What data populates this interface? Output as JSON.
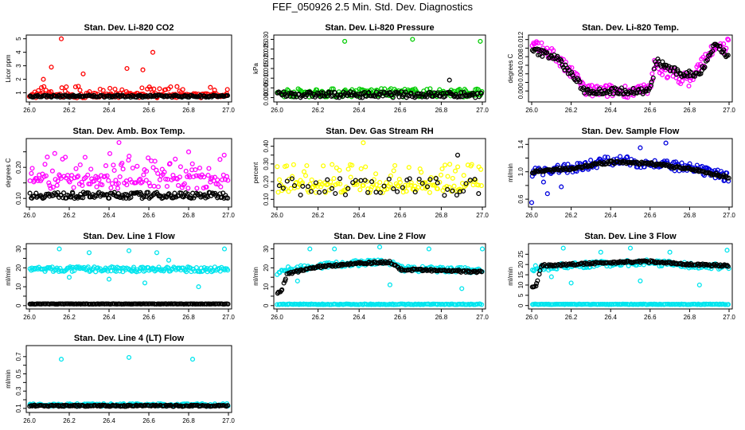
{
  "page": {
    "title": "FEF_050926  2.5 Min. Std. Dev. Diagnostics"
  },
  "chart_data": [
    {
      "type": "scatter",
      "title": "Stan. Dev. Li-820 CO2",
      "xlabel": "",
      "ylabel": "Licor ppm",
      "xlim": [
        26.0,
        27.0
      ],
      "ylim": [
        0.5,
        5.1
      ],
      "xticks": [
        "26.0",
        "26.2",
        "26.4",
        "26.6",
        "26.8",
        "27.0"
      ],
      "yticks": [
        1,
        2,
        3,
        4,
        5
      ],
      "ytick_labels": [
        "1",
        "2",
        "3",
        "4",
        "5"
      ],
      "colors": [
        "#ff0000",
        "#000000"
      ],
      "series": [
        {
          "color": "#ff0000",
          "style": "wide",
          "base": 0.8,
          "spread": 0.35,
          "outliers": [
            [
              26.16,
              5.0
            ],
            [
              26.62,
              4.0
            ],
            [
              26.11,
              2.9
            ],
            [
              26.49,
              2.8
            ],
            [
              26.57,
              2.7
            ],
            [
              26.27,
              2.4
            ],
            [
              26.07,
              2.0
            ]
          ]
        },
        {
          "color": "#000000",
          "style": "flat",
          "base": 0.75,
          "spread": 0.08,
          "outliers": []
        }
      ]
    },
    {
      "type": "scatter",
      "title": "Stan. Dev. Li-820 Pressure",
      "xlabel": "",
      "ylabel": "kPa",
      "xlim": [
        26.0,
        27.0
      ],
      "ylim": [
        -0.001,
        0.031
      ],
      "xticks": [
        "26.0",
        "26.2",
        "26.4",
        "26.6",
        "26.8",
        "27.0"
      ],
      "yticks": [
        0.0,
        0.005,
        0.01,
        0.015,
        0.02,
        0.025,
        0.03
      ],
      "ytick_labels": [
        "0.000",
        "0.005",
        "0.010",
        "0.015",
        "0.020",
        "0.025",
        "0.030"
      ],
      "colors": [
        "#00cc00",
        "#000000"
      ],
      "series": [
        {
          "color": "#00cc00",
          "style": "band",
          "base": 0.0025,
          "spread": 0.0022,
          "outliers": [
            [
              26.33,
              0.029
            ],
            [
              26.66,
              0.03
            ],
            [
              26.99,
              0.029
            ]
          ]
        },
        {
          "color": "#000000",
          "style": "band",
          "base": 0.0015,
          "spread": 0.0015,
          "outliers": [
            [
              26.84,
              0.009
            ]
          ]
        }
      ]
    },
    {
      "type": "scatter",
      "title": "Stan. Dev. Li-820 Temp.",
      "xlabel": "",
      "ylabel": "degrees C",
      "xlim": [
        26.0,
        27.0
      ],
      "ylim": [
        -0.002,
        0.0125
      ],
      "xticks": [
        "26.0",
        "26.2",
        "26.4",
        "26.6",
        "26.8",
        "27.0"
      ],
      "yticks": [
        0.0,
        0.002,
        0.004,
        0.006,
        0.008,
        0.01,
        0.012
      ],
      "ytick_labels": [
        "0.000",
        "",
        "0.004",
        "",
        "0.008",
        "",
        "0.012"
      ],
      "colors": [
        "#ff00ff",
        "#000000"
      ],
      "series": [
        {
          "color": "#ff00ff",
          "style": "curve",
          "curve": [
            [
              26.0,
              0.0105
            ],
            [
              26.1,
              0.009
            ],
            [
              26.18,
              0.005
            ],
            [
              26.25,
              0.002
            ],
            [
              26.27,
              0.0
            ],
            [
              26.6,
              0.0
            ],
            [
              26.62,
              0.006
            ],
            [
              26.7,
              0.004
            ],
            [
              26.8,
              0.0025
            ],
            [
              26.9,
              0.009
            ],
            [
              27.0,
              0.011
            ]
          ],
          "spread": 0.0015,
          "outliers": []
        },
        {
          "color": "#000000",
          "style": "curve",
          "curve": [
            [
              26.0,
              0.0095
            ],
            [
              26.12,
              0.008
            ],
            [
              26.2,
              0.004
            ],
            [
              26.27,
              0.0
            ],
            [
              26.6,
              0.0
            ],
            [
              26.63,
              0.007
            ],
            [
              26.75,
              0.004
            ],
            [
              26.85,
              0.004
            ],
            [
              26.93,
              0.011
            ],
            [
              27.0,
              0.008
            ]
          ],
          "spread": 0.0008,
          "outliers": []
        }
      ]
    },
    {
      "type": "scatter",
      "title": "Stan. Dev. Amb. Box Temp.",
      "xlabel": "",
      "ylabel": "degrees C",
      "xlim": [
        26.0,
        27.0
      ],
      "ylim": [
        0.08,
        0.285
      ],
      "xticks": [
        "26.0",
        "26.2",
        "26.4",
        "26.6",
        "26.8",
        "27.0"
      ],
      "yticks": [
        0.1,
        0.15,
        0.2,
        0.25
      ],
      "ytick_labels": [
        "0.10",
        "",
        "0.20",
        ""
      ],
      "colors": [
        "#ff00ff",
        "#000000"
      ],
      "series": [
        {
          "color": "#ff00ff",
          "style": "wide",
          "base": 0.155,
          "spread": 0.045,
          "outliers": [
            [
              26.45,
              0.28
            ],
            [
              26.8,
              0.25
            ]
          ]
        },
        {
          "color": "#000000",
          "style": "band",
          "base": 0.11,
          "spread": 0.01,
          "outliers": []
        }
      ]
    },
    {
      "type": "scatter",
      "title": "Stan. Dev. Gas Stream RH",
      "xlabel": "",
      "ylabel": "percent",
      "xlim": [
        26.0,
        27.0
      ],
      "ylim": [
        0.07,
        0.43
      ],
      "xticks": [
        "26.0",
        "26.2",
        "26.4",
        "26.6",
        "26.8",
        "27.0"
      ],
      "yticks": [
        0.1,
        0.15,
        0.2,
        0.25,
        0.3,
        0.35,
        0.4
      ],
      "ytick_labels": [
        "0.10",
        "",
        "0.20",
        "",
        "0.30",
        "",
        "0.40"
      ],
      "colors": [
        "#ffff00",
        "#000000"
      ],
      "series": [
        {
          "color": "#ffff00",
          "style": "wide",
          "base": 0.17,
          "spread": 0.065,
          "outliers": [
            [
              26.42,
              0.42
            ]
          ]
        },
        {
          "color": "#000000",
          "style": "sparse",
          "base": 0.17,
          "spread": 0.05,
          "outliers": [
            [
              26.88,
              0.35
            ]
          ]
        }
      ]
    },
    {
      "type": "scatter",
      "title": "Stan. Dev. Sample Flow",
      "xlabel": "",
      "ylabel": "ml/min",
      "xlim": [
        26.0,
        27.0
      ],
      "ylim": [
        0.52,
        1.45
      ],
      "xticks": [
        "26.0",
        "26.2",
        "26.4",
        "26.6",
        "26.8",
        "27.0"
      ],
      "yticks": [
        0.6,
        0.8,
        1.0,
        1.2,
        1.4
      ],
      "ytick_labels": [
        "0.6",
        "",
        "1.0",
        "",
        "1.4"
      ],
      "colors": [
        "#0000dd",
        "#000000"
      ],
      "series": [
        {
          "color": "#0000dd",
          "style": "curve",
          "curve": [
            [
              26.0,
              1.0
            ],
            [
              26.2,
              1.05
            ],
            [
              26.4,
              1.17
            ],
            [
              26.6,
              1.12
            ],
            [
              26.8,
              1.05
            ],
            [
              27.0,
              0.92
            ]
          ],
          "spread": 0.07,
          "outliers": [
            [
              26.0,
              0.55
            ],
            [
              26.08,
              0.68
            ],
            [
              26.15,
              0.78
            ],
            [
              26.68,
              1.42
            ],
            [
              26.55,
              1.35
            ],
            [
              26.06,
              0.85
            ]
          ]
        },
        {
          "color": "#000000",
          "style": "curve",
          "curve": [
            [
              26.0,
              1.0
            ],
            [
              26.2,
              1.05
            ],
            [
              26.4,
              1.14
            ],
            [
              26.6,
              1.12
            ],
            [
              26.8,
              1.04
            ],
            [
              27.0,
              0.92
            ]
          ],
          "spread": 0.02,
          "outliers": []
        }
      ]
    },
    {
      "type": "scatter",
      "title": "Stan. Dev. Line 1 Flow",
      "xlabel": "",
      "ylabel": "ml/min",
      "xlim": [
        26.0,
        27.0
      ],
      "ylim": [
        -0.5,
        31.5
      ],
      "xticks": [
        "26.0",
        "26.2",
        "26.4",
        "26.6",
        "26.8",
        "27.0"
      ],
      "yticks": [
        0,
        5,
        10,
        15,
        20,
        25,
        30
      ],
      "ytick_labels": [
        "0",
        "",
        "10",
        "",
        "20",
        "",
        "30"
      ],
      "colors": [
        "#00e5ee",
        "#000000"
      ],
      "series": [
        {
          "color": "#00e5ee",
          "style": "band",
          "base": 19.2,
          "spread": 1.3,
          "outliers": [
            [
              26.15,
              30
            ],
            [
              26.3,
              28
            ],
            [
              26.5,
              29
            ],
            [
              26.64,
              28
            ],
            [
              26.98,
              30
            ],
            [
              26.4,
              14
            ],
            [
              26.58,
              12
            ],
            [
              26.85,
              10
            ],
            [
              26.2,
              15
            ],
            [
              26.7,
              24
            ]
          ]
        },
        {
          "color": "#000000",
          "style": "flat",
          "base": 0.9,
          "spread": 0.1,
          "outliers": []
        }
      ]
    },
    {
      "type": "scatter",
      "title": "Stan. Dev. Line 2 Flow",
      "xlabel": "",
      "ylabel": "ml/min",
      "xlim": [
        26.0,
        27.0
      ],
      "ylim": [
        -0.5,
        31.5
      ],
      "xticks": [
        "26.0",
        "26.2",
        "26.4",
        "26.6",
        "26.8",
        "27.0"
      ],
      "yticks": [
        0,
        5,
        10,
        15,
        20,
        25,
        30
      ],
      "ytick_labels": [
        "0",
        "",
        "10",
        "",
        "20",
        "",
        "30"
      ],
      "colors": [
        "#00e5ee",
        "#000000"
      ],
      "series": [
        {
          "color": "#00e5ee",
          "style": "curve",
          "curve": [
            [
              26.0,
              17
            ],
            [
              26.05,
              19
            ],
            [
              26.2,
              21
            ],
            [
              26.4,
              22.5
            ],
            [
              26.55,
              23
            ],
            [
              26.6,
              19.5
            ],
            [
              26.8,
              19
            ],
            [
              27.0,
              18.5
            ]
          ],
          "spread": 1.5,
          "outliers": [
            [
              26.16,
              30
            ],
            [
              26.28,
              30
            ],
            [
              26.5,
              31
            ],
            [
              26.74,
              30
            ],
            [
              27.0,
              30
            ],
            [
              26.1,
              13
            ],
            [
              26.9,
              9
            ],
            [
              26.55,
              11
            ]
          ]
        },
        {
          "color": "#00e5ee",
          "style": "flat",
          "base": 0.7,
          "spread": 0.2,
          "outliers": []
        },
        {
          "color": "#000000",
          "style": "curve",
          "curve": [
            [
              26.02,
              7
            ],
            [
              26.05,
              17
            ],
            [
              26.2,
              20.5
            ],
            [
              26.4,
              22.5
            ],
            [
              26.55,
              23
            ],
            [
              26.6,
              19
            ],
            [
              26.8,
              18.5
            ],
            [
              27.0,
              18
            ]
          ],
          "spread": 0.6,
          "outliers": []
        }
      ]
    },
    {
      "type": "scatter",
      "title": "Stan. Dev. Line 3 Flow",
      "xlabel": "",
      "ylabel": "ml/min",
      "xlim": [
        26.0,
        27.0
      ],
      "ylim": [
        -0.5,
        29
      ],
      "xticks": [
        "26.0",
        "26.2",
        "26.4",
        "26.6",
        "26.8",
        "27.0"
      ],
      "yticks": [
        0,
        5,
        10,
        15,
        20,
        25
      ],
      "ytick_labels": [
        "0",
        "5",
        "10",
        "15",
        "20",
        "25"
      ],
      "colors": [
        "#00e5ee",
        "#000000"
      ],
      "series": [
        {
          "color": "#00e5ee",
          "style": "curve",
          "curve": [
            [
              26.0,
              18
            ],
            [
              26.2,
              19.5
            ],
            [
              26.4,
              20.5
            ],
            [
              26.6,
              21
            ],
            [
              26.8,
              19.5
            ],
            [
              27.0,
              19
            ]
          ],
          "spread": 1.4,
          "outliers": [
            [
              26.16,
              28
            ],
            [
              26.35,
              26
            ],
            [
              26.5,
              28
            ],
            [
              26.7,
              26
            ],
            [
              26.99,
              27
            ],
            [
              26.2,
              11
            ],
            [
              26.55,
              12
            ],
            [
              26.85,
              10
            ],
            [
              26.1,
              14
            ]
          ]
        },
        {
          "color": "#00e5ee",
          "style": "flat",
          "base": 0.6,
          "spread": 0.15,
          "outliers": []
        },
        {
          "color": "#000000",
          "style": "curve",
          "curve": [
            [
              26.02,
              9
            ],
            [
              26.05,
              19.5
            ],
            [
              26.2,
              20
            ],
            [
              26.4,
              21
            ],
            [
              26.6,
              21.5
            ],
            [
              26.8,
              20
            ],
            [
              27.0,
              19.5
            ]
          ],
          "spread": 0.5,
          "outliers": []
        }
      ]
    },
    {
      "type": "scatter",
      "title": "Stan. Dev. Line 4 (LT) Flow",
      "xlabel": "",
      "ylabel": "ml/min",
      "xlim": [
        26.0,
        27.0
      ],
      "ylim": [
        0.08,
        0.8
      ],
      "xticks": [
        "26.0",
        "26.2",
        "26.4",
        "26.6",
        "26.8",
        "27.0"
      ],
      "yticks": [
        0.1,
        0.2,
        0.3,
        0.4,
        0.5,
        0.6,
        0.7
      ],
      "ytick_labels": [
        "0.1",
        "",
        "0.3",
        "",
        "0.5",
        "",
        "0.7"
      ],
      "colors": [
        "#00e5ee",
        "#000000"
      ],
      "series": [
        {
          "color": "#00e5ee",
          "style": "band",
          "base": 0.14,
          "spread": 0.015,
          "outliers": [
            [
              26.16,
              0.67
            ],
            [
              26.5,
              0.69
            ],
            [
              26.82,
              0.67
            ]
          ]
        },
        {
          "color": "#000000",
          "style": "band",
          "base": 0.13,
          "spread": 0.008,
          "outliers": []
        }
      ]
    }
  ]
}
